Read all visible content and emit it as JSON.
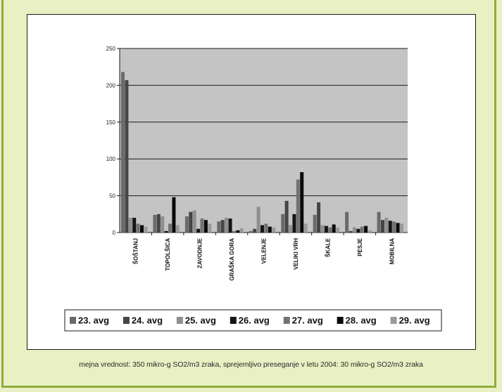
{
  "chart_data": {
    "type": "bar",
    "categories": [
      "ŠOŠTANJ",
      "TOPOLŠICA",
      "ZAVODNJE",
      "GRAŠKA GORA",
      "VELENJE",
      "VELIKI VRH",
      "ŠKALE",
      "PESJE",
      "MOBILNA"
    ],
    "series": [
      {
        "name": "23. avg",
        "values": [
          218,
          24,
          22,
          15,
          2,
          25,
          24,
          28,
          28
        ]
      },
      {
        "name": "24. avg",
        "values": [
          207,
          25,
          28,
          17,
          5,
          43,
          41,
          2,
          17
        ]
      },
      {
        "name": "25. avg",
        "values": [
          20,
          22,
          30,
          20,
          35,
          10,
          10,
          7,
          20
        ]
      },
      {
        "name": "26. avg",
        "values": [
          20,
          2,
          5,
          19,
          10,
          25,
          9,
          5,
          16
        ]
      },
      {
        "name": "27. avg",
        "values": [
          12,
          12,
          19,
          2,
          12,
          72,
          7,
          8,
          15
        ]
      },
      {
        "name": "28. avg",
        "values": [
          10,
          48,
          17,
          3,
          8,
          82,
          11,
          9,
          13
        ]
      },
      {
        "name": "29. avg",
        "values": [
          8,
          10,
          12,
          6,
          7,
          12,
          7,
          3,
          12
        ]
      }
    ],
    "yticks": [
      0,
      50,
      100,
      150,
      200,
      250
    ],
    "ylim": [
      0,
      250
    ],
    "grid": true,
    "legend_position": "bottom"
  },
  "colors": {
    "plot_bg": "#c4c4c4",
    "series": [
      "#6a6a6a",
      "#454545",
      "#8f8f8f",
      "#151515",
      "#727272",
      "#0a0a0a",
      "#9a9a9a"
    ]
  },
  "caption": "mejna vrednost: 350 mikro-g SO2/m3 zraka, sprejemljivo preseganje v letu 2004: 30 mikro-g SO2/m3 zraka"
}
